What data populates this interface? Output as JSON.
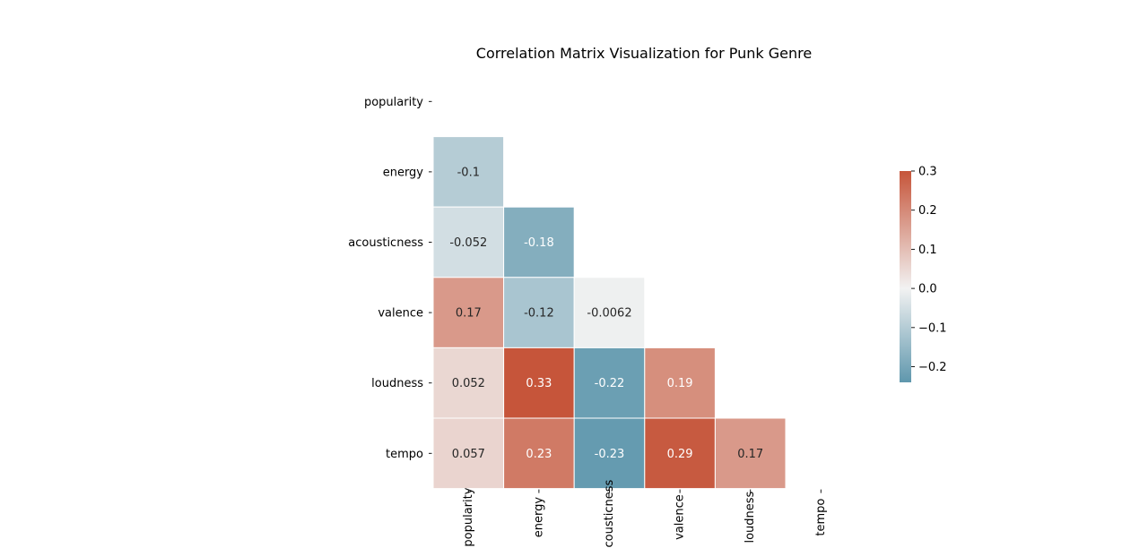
{
  "chart_data": {
    "type": "heatmap",
    "title": "Correlation Matrix Visualization for Punk Genre",
    "variables": [
      "popularity",
      "energy",
      "acousticness",
      "valence",
      "loudness",
      "tempo"
    ],
    "mask": "upper-triangle-including-diagonal",
    "cells": [
      {
        "row": "energy",
        "col": "popularity",
        "value": -0.1,
        "label": "-0.1"
      },
      {
        "row": "acousticness",
        "col": "popularity",
        "value": -0.052,
        "label": "-0.052"
      },
      {
        "row": "acousticness",
        "col": "energy",
        "value": -0.18,
        "label": "-0.18"
      },
      {
        "row": "valence",
        "col": "popularity",
        "value": 0.17,
        "label": "0.17"
      },
      {
        "row": "valence",
        "col": "energy",
        "value": -0.12,
        "label": "-0.12"
      },
      {
        "row": "valence",
        "col": "acousticness",
        "value": -0.0062,
        "label": "-0.0062"
      },
      {
        "row": "loudness",
        "col": "popularity",
        "value": 0.052,
        "label": "0.052"
      },
      {
        "row": "loudness",
        "col": "energy",
        "value": 0.33,
        "label": "0.33"
      },
      {
        "row": "loudness",
        "col": "acousticness",
        "value": -0.22,
        "label": "-0.22"
      },
      {
        "row": "loudness",
        "col": "valence",
        "value": 0.19,
        "label": "0.19"
      },
      {
        "row": "tempo",
        "col": "popularity",
        "value": 0.057,
        "label": "0.057"
      },
      {
        "row": "tempo",
        "col": "energy",
        "value": 0.23,
        "label": "0.23"
      },
      {
        "row": "tempo",
        "col": "acousticness",
        "value": -0.23,
        "label": "-0.23"
      },
      {
        "row": "tempo",
        "col": "valence",
        "value": 0.29,
        "label": "0.29"
      },
      {
        "row": "tempo",
        "col": "loudness",
        "value": 0.17,
        "label": "0.17"
      }
    ],
    "colorbar": {
      "vmin": -0.24,
      "vmax": 0.3,
      "center": 0.0,
      "ticks": [
        0.3,
        0.2,
        0.1,
        0.0,
        -0.1,
        -0.2
      ],
      "tick_labels": [
        "0.3",
        "0.2",
        "0.1",
        "0.0",
        "−0.1",
        "−0.2"
      ]
    },
    "colors": {
      "negative": "#5f97ad",
      "center": "#f2f2f2",
      "positive": "#c6553a",
      "cell_border": "#ffffff"
    },
    "grid": false,
    "legend": "right"
  }
}
